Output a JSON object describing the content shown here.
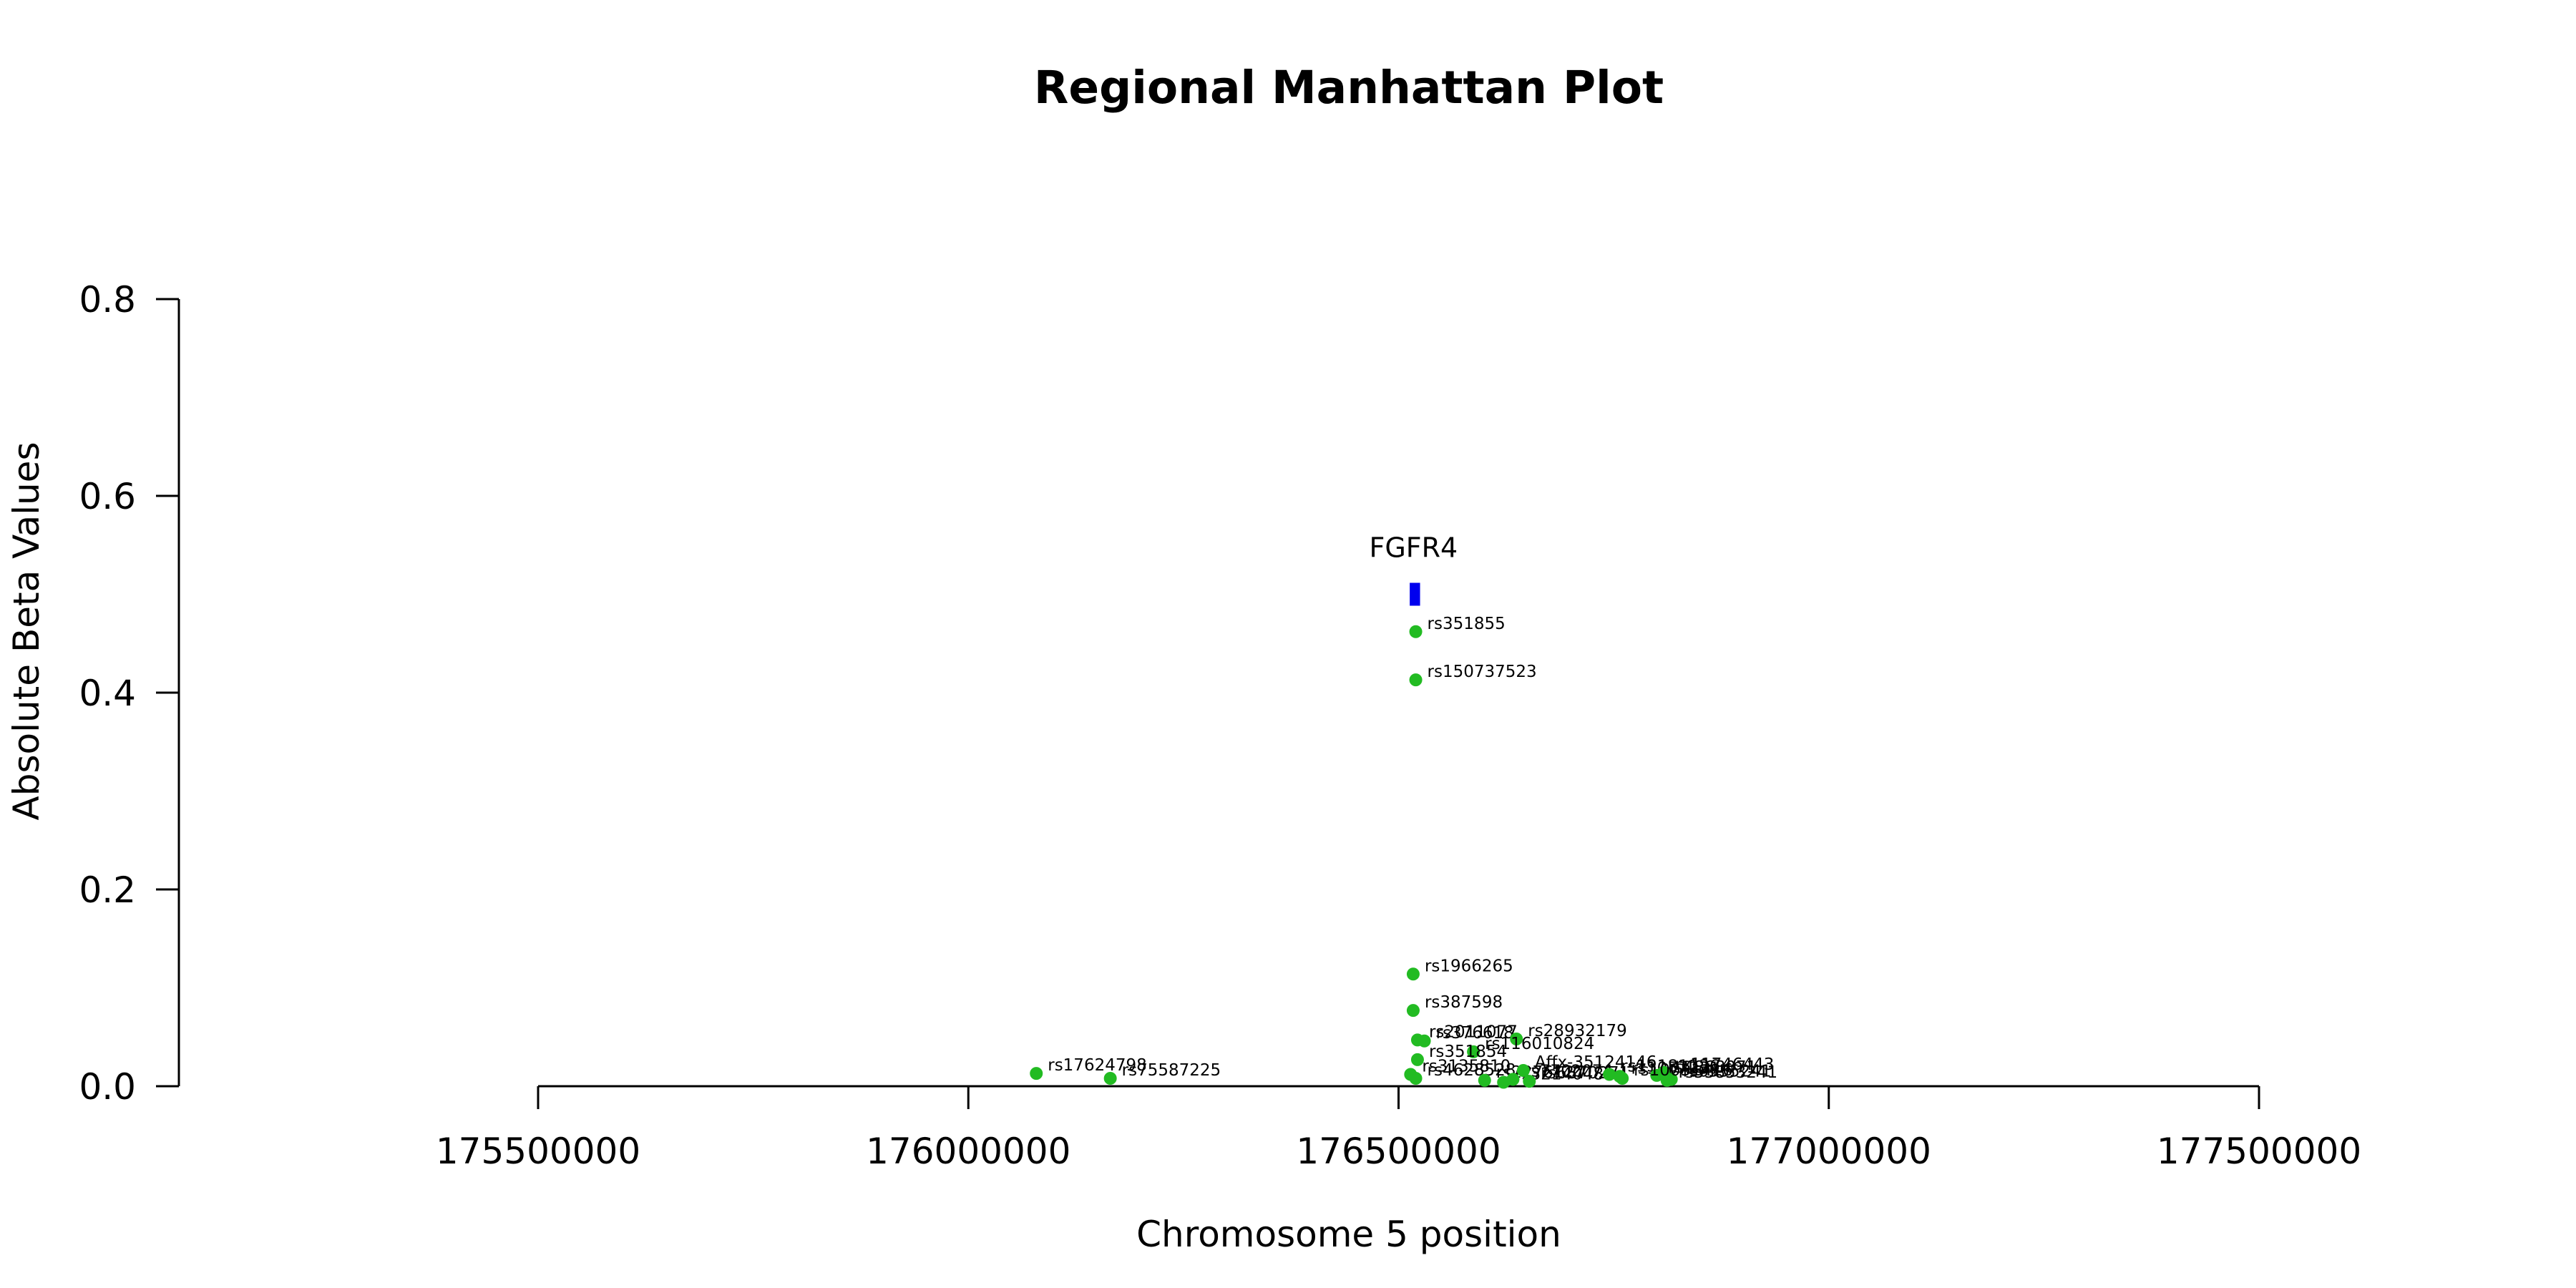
{
  "chart_data": {
    "type": "scatter",
    "title": "Regional Manhattan Plot",
    "xlabel": "Chromosome 5 position",
    "ylabel": "Absolute Beta Values",
    "xlim": [
      175500000,
      177500000
    ],
    "ylim": [
      0,
      0.8
    ],
    "x_ticks": [
      "175500000",
      "176000000",
      "176500000",
      "177000000",
      "177500000"
    ],
    "y_ticks": [
      "0.0",
      "0.2",
      "0.4",
      "0.6",
      "0.8"
    ],
    "grid": false,
    "point_color": "#22bb22",
    "gene_color": "#0000ee",
    "genes": [
      {
        "name": "FGFR4",
        "start": 176513000,
        "end": 176525000,
        "y": 0.5
      }
    ],
    "points": [
      {
        "id": "rs351855",
        "x": 176520000,
        "y": 0.462
      },
      {
        "id": "rs150737523",
        "x": 176520000,
        "y": 0.413
      },
      {
        "id": "rs1966265",
        "x": 176517000,
        "y": 0.114
      },
      {
        "id": "rs387598",
        "x": 176517000,
        "y": 0.077
      },
      {
        "id": "rs2011077",
        "x": 176522000,
        "y": 0.047
      },
      {
        "id": "rs376618",
        "x": 176530000,
        "y": 0.046
      },
      {
        "id": "rs28932179",
        "x": 176637000,
        "y": 0.048
      },
      {
        "id": "rs116010824",
        "x": 176587000,
        "y": 0.035
      },
      {
        "id": "rs351854",
        "x": 176522000,
        "y": 0.027
      },
      {
        "id": "rs3135810",
        "x": 176514000,
        "y": 0.012
      },
      {
        "id": "rs4628528",
        "x": 176520000,
        "y": 0.008
      },
      {
        "id": "rs17624798",
        "x": 176079000,
        "y": 0.013
      },
      {
        "id": "rs75587225",
        "x": 176165000,
        "y": 0.008
      },
      {
        "id": "rs2276127",
        "x": 176600000,
        "y": 0.006
      },
      {
        "id": "rs3214048",
        "x": 176622000,
        "y": 0.004
      },
      {
        "id": "rs7702074",
        "x": 176633000,
        "y": 0.007
      },
      {
        "id": "rs6870271",
        "x": 176652000,
        "y": 0.005
      },
      {
        "id": "Affx-35124146",
        "x": 176645000,
        "y": 0.016
      },
      {
        "id": "rs13181136",
        "x": 176745000,
        "y": 0.012
      },
      {
        "id": "rs1057231",
        "x": 176757000,
        "y": 0.01
      },
      {
        "id": "rs11746443",
        "x": 176808000,
        "y": 0.014
      },
      {
        "id": "rs4868071",
        "x": 176800000,
        "y": 0.011
      },
      {
        "id": "rs6555241",
        "x": 176817000,
        "y": 0.007
      },
      {
        "id": "rs55853241",
        "x": 176812000,
        "y": 0.006
      },
      {
        "id": "rs10051416",
        "x": 176760000,
        "y": 0.008
      }
    ]
  }
}
